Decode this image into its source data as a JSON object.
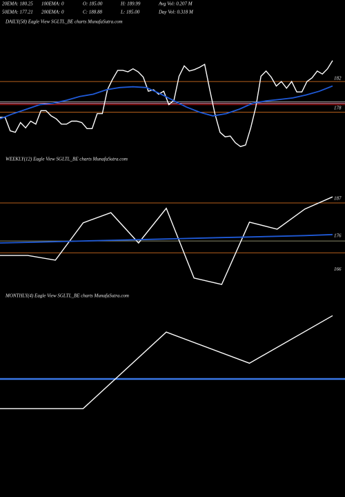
{
  "header": {
    "row1": [
      "20EMA: 180.25",
      "100EMA: 0",
      "O: 185.00",
      "H: 189.99",
      "Avg Vol: 0.207 M"
    ],
    "row2": [
      "50EMA: 177.21",
      "200EMA: 0",
      "C: 188.88",
      "L: 185.00",
      "Day Vol: 0.318 M"
    ]
  },
  "chart_data": [
    {
      "type": "line",
      "title": "DAILY(58) Eagle  View  SGLTL_BE charts MunafaSutra.com",
      "ylim": [
        172,
        189
      ],
      "yticks": [
        182,
        178
      ],
      "hlines": [
        {
          "value": 181.6,
          "color": "#b8601c"
        },
        {
          "value": 177.5,
          "color": "#b8601c"
        },
        {
          "value": 178.9,
          "color": "#9a9a9a"
        },
        {
          "value": 178.7,
          "color": "#ff8fb0"
        },
        {
          "value": 178.5,
          "color": "#d02020"
        }
      ],
      "series": [
        {
          "color": "#ffffff",
          "values": [
            176.8,
            176.8,
            175.0,
            174.8,
            176.1,
            175.4,
            176.3,
            175.9,
            177.7,
            177.7,
            177.0,
            176.6,
            175.9,
            175.9,
            176.3,
            176.3,
            176.1,
            175.3,
            175.3,
            177.3,
            177.3,
            180.5,
            181.9,
            183.1,
            183.1,
            182.9,
            183.3,
            182.9,
            182.2,
            180.3,
            180.5,
            179.9,
            180.3,
            178.5,
            179.1,
            182.3,
            183.7,
            183.0,
            183.2,
            183.5,
            183.9,
            180.5,
            177.3,
            174.8,
            174.2,
            174.3,
            173.4,
            172.9,
            173.1,
            175.4,
            178.2,
            182.3,
            183.0,
            182.2,
            181.0,
            181.6,
            180.7,
            181.6,
            180.2,
            180.2,
            181.6,
            182.1,
            183.0,
            182.6,
            183.3,
            184.4
          ]
        },
        {
          "color": "#1f5ad8",
          "values": [
            176.6,
            177.3,
            177.9,
            178.5,
            178.7,
            179.1,
            179.6,
            179.9,
            180.5,
            180.8,
            180.9,
            180.8,
            180.0,
            179.1,
            178.2,
            177.5,
            177.0,
            177.3,
            177.9,
            178.7,
            179.0,
            179.2,
            179.4,
            179.8,
            180.3,
            181.0
          ]
        }
      ]
    },
    {
      "type": "line",
      "title": "WEEKLY(12) Eagle  View  SGLTL_BE charts MunafaSutra.com",
      "ylim": [
        161,
        198.5
      ],
      "yticks": [
        187,
        176,
        166
      ],
      "hlines": [
        {
          "value": 185.8,
          "color": "#b8601c"
        },
        {
          "value": 171.0,
          "color": "#b8601c"
        },
        {
          "value": 174.5,
          "color": "#8a8a6a"
        }
      ],
      "series": [
        {
          "color": "#ffffff",
          "values": [
            170.2,
            170.2,
            168.8,
            179.9,
            182.9,
            173.9,
            184.2,
            163.5,
            161.6,
            180.1,
            178.0,
            184.0,
            187.6
          ]
        },
        {
          "color": "#1f5ad8",
          "values": [
            173.9,
            174.1,
            174.3,
            174.5,
            174.7,
            174.9,
            175.1,
            175.3,
            175.5,
            175.7,
            175.9,
            176.1,
            176.4
          ]
        }
      ]
    },
    {
      "type": "line",
      "title": "MONTHLY(4) Eagle  View  SGLTL_BE charts MunafaSutra.com",
      "ylim": [
        150,
        200
      ],
      "hlines": [
        {
          "value": 178.5,
          "color": "#3a78e8"
        }
      ],
      "series": [
        {
          "color": "#ffffff",
          "values": [
            170.4,
            170.4,
            191.3,
            182.8,
            195.8
          ]
        }
      ]
    }
  ]
}
